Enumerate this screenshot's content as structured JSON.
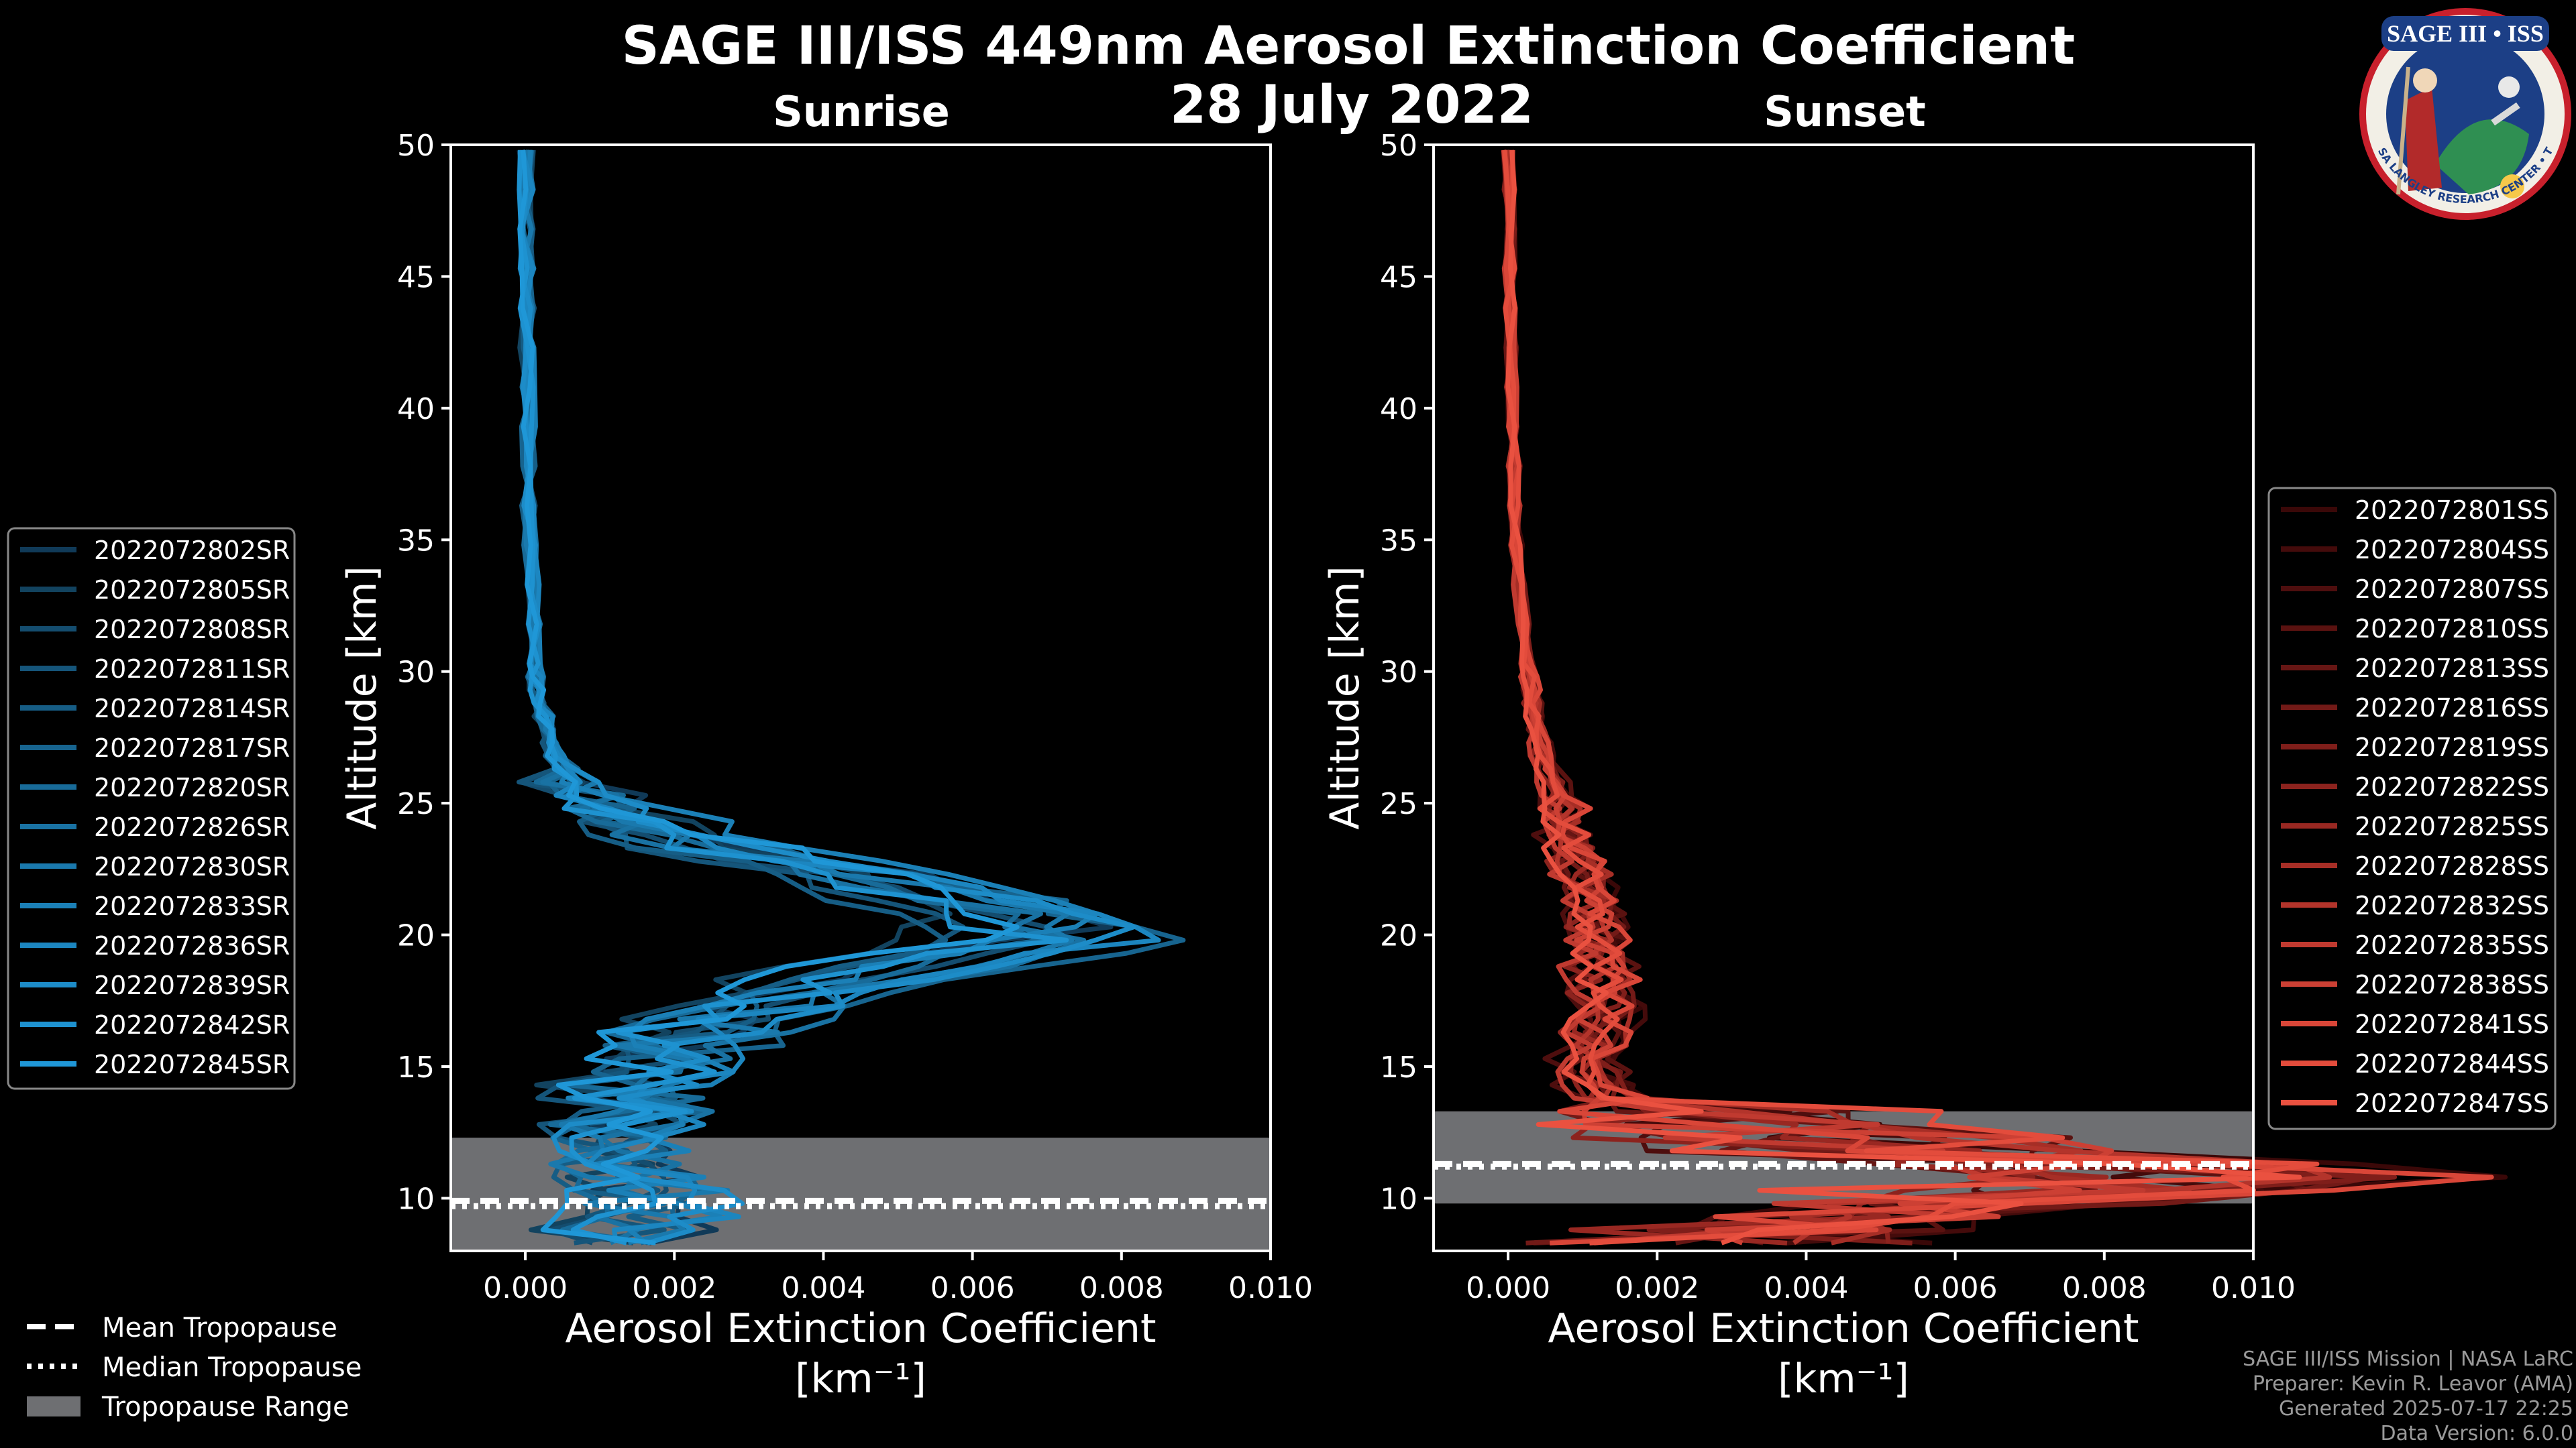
{
  "figure": {
    "title_line1": "SAGE III/ISS 449nm Aerosol Extinction Coefficient",
    "title_line2": "28 July 2022",
    "credits": [
      "SAGE III/ISS Mission | NASA LaRC",
      "Preparer: Kevin R. Leavor (AMA)",
      "Generated 2025-07-17 22:25",
      "Data Version: 6.0.0"
    ],
    "logo": {
      "top_text": "SAGE III • ISS",
      "ring_text": "BALL • NASA LANGLEY RESEARCH CENTER • TAS-I • ESA"
    }
  },
  "colors": {
    "background": "#000000",
    "sunrise_base": "#1e90d0",
    "sunset_base": "#e8503f",
    "tropo_range": "#6e6f72",
    "axis": "#ffffff"
  },
  "left_legend": {
    "labels": [
      "Mean Tropopause",
      "Median Tropopause",
      "Tropopause Range"
    ]
  },
  "chart_data": [
    {
      "type": "line",
      "panel": "Sunrise",
      "title": "Sunrise",
      "xlabel": "Aerosol Extinction Coefficient",
      "xunit": "[km⁻¹]",
      "ylabel": "Altitude [km]",
      "xlim": [
        -0.001,
        0.01
      ],
      "ylim": [
        8,
        50
      ],
      "xticks": [
        "0.000",
        "0.002",
        "0.004",
        "0.006",
        "0.008",
        "0.010"
      ],
      "yticks": [
        "10",
        "15",
        "20",
        "25",
        "30",
        "35",
        "40",
        "45",
        "50"
      ],
      "tropopause": {
        "mean_km": 9.9,
        "median_km": 9.7,
        "range_km": [
          8.0,
          12.3
        ]
      },
      "series": [
        {
          "name": "2022072802SR",
          "color": "#103a58"
        },
        {
          "name": "2022072805SR",
          "color": "#12435f"
        },
        {
          "name": "2022072808SR",
          "color": "#144d6f"
        },
        {
          "name": "2022072811SR",
          "color": "#15557a"
        },
        {
          "name": "2022072814SR",
          "color": "#165d85"
        },
        {
          "name": "2022072817SR",
          "color": "#17648f"
        },
        {
          "name": "2022072820SR",
          "color": "#186b99"
        },
        {
          "name": "2022072826SR",
          "color": "#1972a3"
        },
        {
          "name": "2022072830SR",
          "color": "#1a79ad"
        },
        {
          "name": "2022072833SR",
          "color": "#1b80b7"
        },
        {
          "name": "2022072836SR",
          "color": "#1c86c0"
        },
        {
          "name": "2022072839SR",
          "color": "#1d8cc8"
        },
        {
          "name": "2022072842SR",
          "color": "#1e92d0"
        },
        {
          "name": "2022072845SR",
          "color": "#1f97d7"
        }
      ],
      "profile_shape": {
        "altitude_km": [
          8.5,
          9.5,
          10.5,
          11.5,
          12.5,
          13.5,
          14.5,
          15.5,
          16.5,
          17.5,
          18.5,
          19.5,
          20.0,
          20.5,
          21.5,
          22.5,
          23.5,
          24.5,
          25.5,
          26.5,
          27.5,
          28.5,
          30,
          32,
          35,
          40,
          45,
          50
        ],
        "mean_extinction": [
          0.0012,
          0.0015,
          0.0014,
          0.0011,
          0.001,
          0.0013,
          0.0014,
          0.0016,
          0.002,
          0.0028,
          0.004,
          0.0056,
          0.0065,
          0.006,
          0.0052,
          0.0038,
          0.0022,
          0.0012,
          0.0007,
          0.0004,
          0.0003,
          0.0002,
          0.0001,
          0.0001,
          5e-05,
          3e-05,
          2e-05,
          1e-05
        ]
      }
    },
    {
      "type": "line",
      "panel": "Sunset",
      "title": "Sunset",
      "xlabel": "Aerosol Extinction Coefficient",
      "xunit": "[km⁻¹]",
      "ylabel": "Altitude [km]",
      "xlim": [
        -0.001,
        0.01
      ],
      "ylim": [
        8,
        50
      ],
      "xticks": [
        "0.000",
        "0.002",
        "0.004",
        "0.006",
        "0.008",
        "0.010"
      ],
      "yticks": [
        "10",
        "15",
        "20",
        "25",
        "30",
        "35",
        "40",
        "45",
        "50"
      ],
      "tropopause": {
        "mean_km": 11.3,
        "median_km": 11.2,
        "range_km": [
          9.8,
          13.3
        ]
      },
      "series": [
        {
          "name": "2022072801SS",
          "color": "#3a0808"
        },
        {
          "name": "2022072804SS",
          "color": "#440b0b"
        },
        {
          "name": "2022072807SS",
          "color": "#4e0e0e"
        },
        {
          "name": "2022072810SS",
          "color": "#5a1210"
        },
        {
          "name": "2022072813SS",
          "color": "#661614"
        },
        {
          "name": "2022072816SS",
          "color": "#721a17"
        },
        {
          "name": "2022072819SS",
          "color": "#7f1e1a"
        },
        {
          "name": "2022072822SS",
          "color": "#8c231e"
        },
        {
          "name": "2022072825SS",
          "color": "#992822"
        },
        {
          "name": "2022072828SS",
          "color": "#a62e26"
        },
        {
          "name": "2022072832SS",
          "color": "#b3342b"
        },
        {
          "name": "2022072835SS",
          "color": "#c03a30"
        },
        {
          "name": "2022072838SS",
          "color": "#cc4034"
        },
        {
          "name": "2022072841SS",
          "color": "#d94638"
        },
        {
          "name": "2022072844SS",
          "color": "#e34c3c"
        },
        {
          "name": "2022072847SS",
          "color": "#ea5140"
        }
      ],
      "profile_shape": {
        "altitude_km": [
          8.5,
          9.5,
          10.5,
          11.0,
          11.5,
          12.5,
          13.5,
          14.5,
          15.5,
          16.5,
          17.5,
          18.5,
          19.5,
          20.5,
          21.5,
          22.5,
          23.5,
          24.5,
          25.5,
          27,
          29,
          31,
          35,
          40,
          45,
          50
        ],
        "mean_extinction": [
          0.0015,
          0.003,
          0.006,
          0.008,
          0.005,
          0.0025,
          0.0014,
          0.0011,
          0.001,
          0.0011,
          0.0012,
          0.0012,
          0.0011,
          0.001,
          0.001,
          0.0009,
          0.0008,
          0.0007,
          0.0006,
          0.0004,
          0.0003,
          0.0002,
          0.0001,
          5e-05,
          2e-05,
          1e-05
        ]
      }
    }
  ]
}
